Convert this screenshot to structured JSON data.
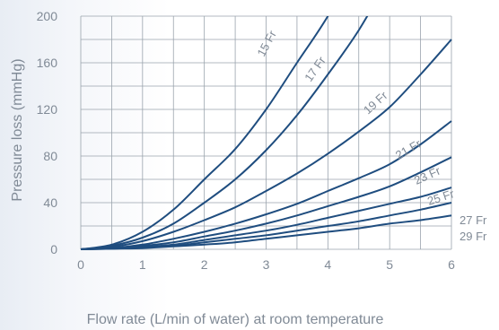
{
  "chart_data": {
    "type": "line",
    "title": "",
    "xlabel": "Flow rate (L/min of water) at room temperature",
    "ylabel": "Pressure loss (mmHg)",
    "xlim": [
      0,
      6
    ],
    "ylim": [
      0,
      200
    ],
    "xticks": [
      "0",
      "1",
      "2",
      "3",
      "4",
      "5",
      "6"
    ],
    "yticks": [
      "0",
      "40",
      "80",
      "120",
      "160",
      "200"
    ],
    "grid": true,
    "x": [
      0,
      0.5,
      1,
      1.5,
      2,
      2.5,
      3,
      3.5,
      4,
      4.5,
      5,
      5.5,
      6
    ],
    "series": [
      {
        "name": "15 Fr",
        "values": [
          0,
          4,
          15,
          34,
          60,
          86,
          120,
          160,
          200,
          null,
          null,
          null,
          null
        ]
      },
      {
        "name": "17 Fr",
        "values": [
          0,
          3,
          10,
          22,
          40,
          60,
          85,
          115,
          150,
          188,
          null,
          null,
          null
        ]
      },
      {
        "name": "19 Fr",
        "values": [
          0,
          2,
          7,
          15,
          25,
          36,
          50,
          65,
          82,
          101,
          122,
          150,
          180
        ]
      },
      {
        "name": "21 Fr",
        "values": [
          0,
          1,
          4,
          9,
          15,
          22,
          30,
          39,
          50,
          61,
          73,
          90,
          110
        ]
      },
      {
        "name": "23 Fr",
        "values": [
          0,
          1,
          3,
          6,
          11,
          16,
          22,
          29,
          37,
          45,
          54,
          66,
          79
        ]
      },
      {
        "name": "25 Fr",
        "values": [
          0,
          1,
          2,
          4,
          8,
          12,
          16,
          21,
          27,
          33,
          39,
          45,
          53
        ]
      },
      {
        "name": "27 Fr",
        "values": [
          0,
          0.5,
          1.5,
          3,
          6,
          9,
          12,
          16,
          20,
          24,
          29,
          34,
          40
        ]
      },
      {
        "name": "29 Fr",
        "values": [
          0,
          0.5,
          1,
          2.5,
          4,
          6,
          9,
          12,
          15,
          18,
          22,
          25,
          29
        ]
      }
    ],
    "colors": {
      "line": "#1f4d7f",
      "grid": "#9aa3ad",
      "text": "#808a96"
    }
  }
}
